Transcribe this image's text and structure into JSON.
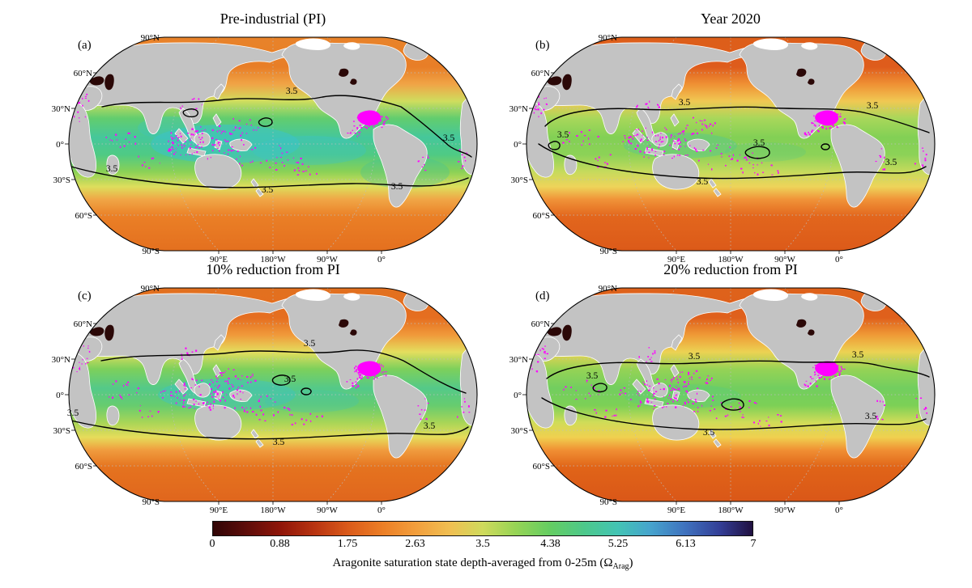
{
  "figure": {
    "lat_labels": [
      "90°N",
      "60°N",
      "30°N",
      "0°",
      "30°S",
      "60°S",
      "90°S"
    ],
    "lon_labels": [
      "90°E",
      "180°W",
      "90°W",
      "0°"
    ],
    "contour_label": "3.5",
    "colors": {
      "land": "#c3c3c3",
      "missing": "#ff00ff",
      "contour": "#000000",
      "dark_sea": "#2b0807",
      "ice": "#ffffff",
      "graticule": "#bdbdbd",
      "coastline": "#ffffff"
    },
    "colorbar": {
      "ticks": [
        "0",
        "0.88",
        "1.75",
        "2.63",
        "3.5",
        "4.38",
        "5.25",
        "6.13",
        "7"
      ],
      "label_prefix": "Aragonite saturation state depth-averaged from 0-25m (Ω",
      "label_sub": "Arag",
      "label_suffix": ")",
      "stops": [
        [
          0,
          "#300506"
        ],
        [
          0.06,
          "#5c0d0a"
        ],
        [
          0.125,
          "#8f1509"
        ],
        [
          0.19,
          "#b93511"
        ],
        [
          0.25,
          "#da5a1a"
        ],
        [
          0.315,
          "#ec7f26"
        ],
        [
          0.375,
          "#f29e3c"
        ],
        [
          0.44,
          "#f0bf52"
        ],
        [
          0.5,
          "#cfda5c"
        ],
        [
          0.56,
          "#97d455"
        ],
        [
          0.625,
          "#64cd62"
        ],
        [
          0.69,
          "#4cc88c"
        ],
        [
          0.75,
          "#43c4b4"
        ],
        [
          0.81,
          "#46a4cd"
        ],
        [
          0.875,
          "#3f72be"
        ],
        [
          0.94,
          "#333e96"
        ],
        [
          1,
          "#201040"
        ]
      ]
    },
    "panels": [
      {
        "id": "a",
        "label": "(a)",
        "title": "Pre-industrial (PI)",
        "speckle_seed": 11,
        "ocean_stops": [
          [
            0,
            "#e8832a"
          ],
          [
            0.14,
            "#e87e27"
          ],
          [
            0.22,
            "#f0a446"
          ],
          [
            0.3,
            "#cfdd5e"
          ],
          [
            0.38,
            "#62cd6e"
          ],
          [
            0.47,
            "#45c79b"
          ],
          [
            0.55,
            "#4fca84"
          ],
          [
            0.63,
            "#8ad156"
          ],
          [
            0.7,
            "#ddde5c"
          ],
          [
            0.76,
            "#f0a646"
          ],
          [
            0.84,
            "#ea7f26"
          ],
          [
            1,
            "#e4701f"
          ]
        ],
        "patches": [
          [
            248,
            170,
            92,
            24,
            "#3cc3c8",
            0.55
          ],
          [
            352,
            178,
            70,
            18,
            "#3cc3c8",
            0.35
          ],
          [
            470,
            205,
            55,
            20,
            "#46c494",
            0.35
          ],
          [
            180,
            150,
            40,
            14,
            "#3cc3c8",
            0.3
          ]
        ],
        "contour_paths": [
          "M96,124 C140,114 185,122 240,116 C290,110 330,120 368,112 C400,106 440,116 465,124 C485,138 508,158 524,172 C534,180 545,180 552,186",
          "M58,198 C100,210 160,219 225,223 C285,226 345,220 405,219 C455,218 505,230 548,212",
          "M292,140 c6,-4 14,-2 14,3 c0,5 -10,7 -15,3 c-3,-3 -1,-5 1,-6 Z",
          "M200,128 c8,-3 16,0 14,5 c-2,5 -14,4 -17,0 c-2,-3 0,-4 3,-5 Z"
        ],
        "contour_labels": [
          [
            330,
            108
          ],
          [
            524,
            166
          ],
          [
            300,
            230
          ],
          [
            108,
            204
          ],
          [
            460,
            226
          ]
        ]
      },
      {
        "id": "b",
        "label": "(b)",
        "title": "Year 2020",
        "speckle_seed": 23,
        "ocean_stops": [
          [
            0,
            "#dd5f1a"
          ],
          [
            0.14,
            "#de5c1c"
          ],
          [
            0.22,
            "#ef9134"
          ],
          [
            0.3,
            "#f0c853"
          ],
          [
            0.38,
            "#a8d75a"
          ],
          [
            0.47,
            "#82d055"
          ],
          [
            0.55,
            "#8cd257"
          ],
          [
            0.63,
            "#c6da5c"
          ],
          [
            0.7,
            "#eed45a"
          ],
          [
            0.76,
            "#f09338"
          ],
          [
            0.84,
            "#e2661d"
          ],
          [
            1,
            "#dc5a19"
          ]
        ],
        "patches": [
          [
            245,
            172,
            70,
            16,
            "#47c6a4",
            0.35
          ],
          [
            350,
            180,
            50,
            12,
            "#52c987",
            0.25
          ]
        ],
        "contour_paths": [
          "M78,148 C95,130 140,124 195,127 C250,130 300,122 350,125 C400,128 445,124 475,132 C500,138 530,148 552,156",
          "M70,170 C105,194 175,206 248,211 C320,216 395,208 450,205 C495,203 525,212 548,198",
          "M86,168 c5,-3 11,0 10,5 c-1,5 -10,5 -13,1 c-2,-3 0,-5 3,-6 Z",
          "M330,176 c10,-5 24,-3 25,4 c1,7 -14,10 -24,6 c-7,-3 -8,-7 -1,-10 Z",
          "M424,170 a5,3.5 0 1 0 0.1,0 Z"
        ],
        "contour_labels": [
          [
            250,
            122
          ],
          [
            342,
            172
          ],
          [
            100,
            162
          ],
          [
            482,
            126
          ],
          [
            505,
            196
          ],
          [
            272,
            220
          ]
        ]
      },
      {
        "id": "c",
        "label": "(c)",
        "title": "10% reduction from PI",
        "speckle_seed": 37,
        "ocean_stops": [
          [
            0,
            "#e2701f"
          ],
          [
            0.14,
            "#e56e20"
          ],
          [
            0.22,
            "#f0993a"
          ],
          [
            0.3,
            "#e4de5e"
          ],
          [
            0.38,
            "#7dd05b"
          ],
          [
            0.47,
            "#54c989"
          ],
          [
            0.55,
            "#66cc6f"
          ],
          [
            0.63,
            "#a8d557"
          ],
          [
            0.7,
            "#e6dc5a"
          ],
          [
            0.76,
            "#f09c3e"
          ],
          [
            0.84,
            "#e5731f"
          ],
          [
            1,
            "#e0661d"
          ]
        ],
        "patches": [
          [
            250,
            170,
            85,
            20,
            "#3cc3c8",
            0.42
          ],
          [
            355,
            178,
            58,
            14,
            "#41c5b2",
            0.3
          ]
        ],
        "contour_paths": [
          "M95,128 C145,118 200,124 255,118 C305,112 350,122 395,116 C425,112 450,120 468,128 C490,140 515,158 545,168",
          "M58,202 C108,214 175,221 248,224 C315,227 385,220 448,218 C495,216 525,226 548,210",
          "M310,148 c8,-4 18,-2 18,4 c0,6 -12,8 -19,4 c-4,-3 -3,-6 1,-8 Z",
          "M348,162 a6,4 0 1 0 0.1,0 Z"
        ],
        "contour_labels": [
          [
            352,
            110
          ],
          [
            328,
            154
          ],
          [
            314,
            232
          ],
          [
            60,
            196
          ],
          [
            500,
            212
          ]
        ]
      },
      {
        "id": "d",
        "label": "(d)",
        "title": "20% reduction from PI",
        "speckle_seed": 53,
        "ocean_stops": [
          [
            0,
            "#de621b"
          ],
          [
            0.14,
            "#df601c"
          ],
          [
            0.22,
            "#ef9a36"
          ],
          [
            0.3,
            "#ecd253"
          ],
          [
            0.38,
            "#96d355"
          ],
          [
            0.47,
            "#72ce5f"
          ],
          [
            0.55,
            "#7cd056"
          ],
          [
            0.63,
            "#d0dc58"
          ],
          [
            0.7,
            "#f0d04f"
          ],
          [
            0.76,
            "#f08f33"
          ],
          [
            0.84,
            "#e06418"
          ],
          [
            1,
            "#da5718"
          ]
        ],
        "patches": [
          [
            248,
            172,
            72,
            15,
            "#57cb80",
            0.35
          ]
        ],
        "contour_paths": [
          "M80,150 C100,134 150,128 205,131 C260,134 315,126 370,129 C420,132 460,126 490,134 C515,140 535,140 552,148",
          "M74,174 C110,196 180,208 252,212 C322,216 392,208 446,206 C492,204 522,212 548,200",
          "M300,178 c10,-5 22,-3 23,4 c1,7 -13,9 -22,5 c-6,-3 -7,-6 -1,-9 Z",
          "M140,158 c7,-4 15,-1 14,4 c-1,5 -12,6 -16,2 c-2,-3 0,-5 2,-6 Z"
        ],
        "contour_labels": [
          [
            262,
            126
          ],
          [
            136,
            150
          ],
          [
            280,
            220
          ],
          [
            464,
            124
          ],
          [
            480,
            200
          ]
        ]
      }
    ]
  },
  "chart_data": {
    "type": "heatmap",
    "title": "Aragonite saturation state depth-averaged from 0-25m (Ω_Arag)",
    "variable": "Omega_Arag (aragonite saturation state)",
    "depth_average": "0-25m",
    "colormap_range": [
      0,
      7
    ],
    "colorbar_ticks": [
      0,
      0.88,
      1.75,
      2.63,
      3.5,
      4.38,
      5.25,
      6.13,
      7
    ],
    "contour_level": 3.5,
    "projection": "global pseudocylindrical (Robinson-style) maps centered on 180°, graticule at 30° intervals, lon labels 90E/180W/90W/0",
    "legend_position": "bottom horizontal colorbar",
    "panels": [
      {
        "id": "a",
        "title": "Pre-industrial (PI)",
        "approx_zonal_mean_omega": {
          "60N": 2.2,
          "45N": 2.9,
          "30N": 3.7,
          "15N": 4.25,
          "0": 4.35,
          "15S": 4.3,
          "30S": 3.8,
          "45S": 2.9,
          "60S": 2.3
        },
        "tropical_max": 4.6
      },
      {
        "id": "b",
        "title": "Year 2020",
        "approx_zonal_mean_omega": {
          "60N": 1.7,
          "45N": 2.35,
          "30N": 3.1,
          "15N": 3.65,
          "0": 3.7,
          "15S": 3.65,
          "30S": 3.3,
          "45S": 2.4,
          "60S": 1.8
        },
        "tropical_max": 3.9
      },
      {
        "id": "c",
        "title": "10% reduction from PI",
        "approx_zonal_mean_omega": {
          "60N": 2.0,
          "45N": 2.6,
          "30N": 3.35,
          "15N": 3.85,
          "0": 3.9,
          "15S": 3.85,
          "30S": 3.4,
          "45S": 2.6,
          "60S": 2.1
        },
        "tropical_max": 4.15
      },
      {
        "id": "d",
        "title": "20% reduction from PI",
        "approx_zonal_mean_omega": {
          "60N": 1.75,
          "45N": 2.3,
          "30N": 2.95,
          "15N": 3.4,
          "0": 3.5,
          "15S": 3.45,
          "30S": 3.05,
          "45S": 2.3,
          "60S": 1.85
        },
        "tropical_max": 3.7
      }
    ],
    "notes": "Black contour marks Omega=3.5; magenta speckles mark shallow/coastal no-data cells; gray = land; dark blobs = enclosed seas near 0."
  }
}
